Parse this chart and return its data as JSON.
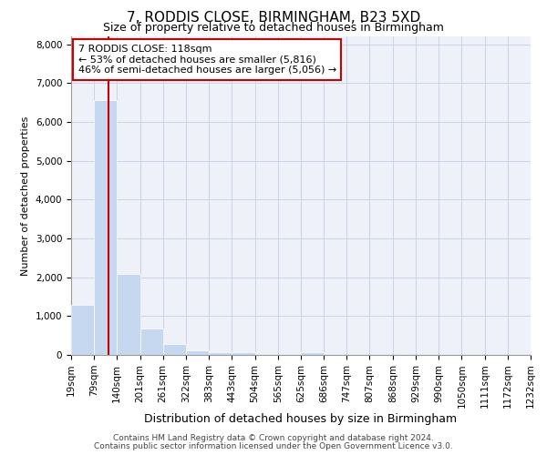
{
  "title1": "7, RODDIS CLOSE, BIRMINGHAM, B23 5XD",
  "title2": "Size of property relative to detached houses in Birmingham",
  "xlabel": "Distribution of detached houses by size in Birmingham",
  "ylabel": "Number of detached properties",
  "annotation_line1": "7 RODDIS CLOSE: 118sqm",
  "annotation_line2": "← 53% of detached houses are smaller (5,816)",
  "annotation_line3": "46% of semi-detached houses are larger (5,056) →",
  "footnote1": "Contains HM Land Registry data © Crown copyright and database right 2024.",
  "footnote2": "Contains public sector information licensed under the Open Government Licence v3.0.",
  "property_size": 118,
  "bin_edges": [
    19,
    79,
    140,
    201,
    261,
    322,
    383,
    443,
    504,
    565,
    625,
    686,
    747,
    807,
    868,
    929,
    990,
    1050,
    1111,
    1172,
    1232
  ],
  "bar_values": [
    1300,
    6550,
    2080,
    680,
    280,
    110,
    60,
    60,
    0,
    0,
    60,
    0,
    0,
    0,
    0,
    0,
    0,
    0,
    0,
    0
  ],
  "bar_color": "#c5d8f0",
  "vline_color": "#cc0000",
  "grid_color": "#c8d4e8",
  "background_color": "#eef2f8",
  "ylim": [
    0,
    8200
  ],
  "yticks": [
    0,
    1000,
    2000,
    3000,
    4000,
    5000,
    6000,
    7000,
    8000
  ],
  "title1_fontsize": 11,
  "title2_fontsize": 9,
  "xlabel_fontsize": 9,
  "ylabel_fontsize": 8,
  "tick_fontsize": 7.5,
  "annot_fontsize": 8,
  "footnote_fontsize": 6.5
}
